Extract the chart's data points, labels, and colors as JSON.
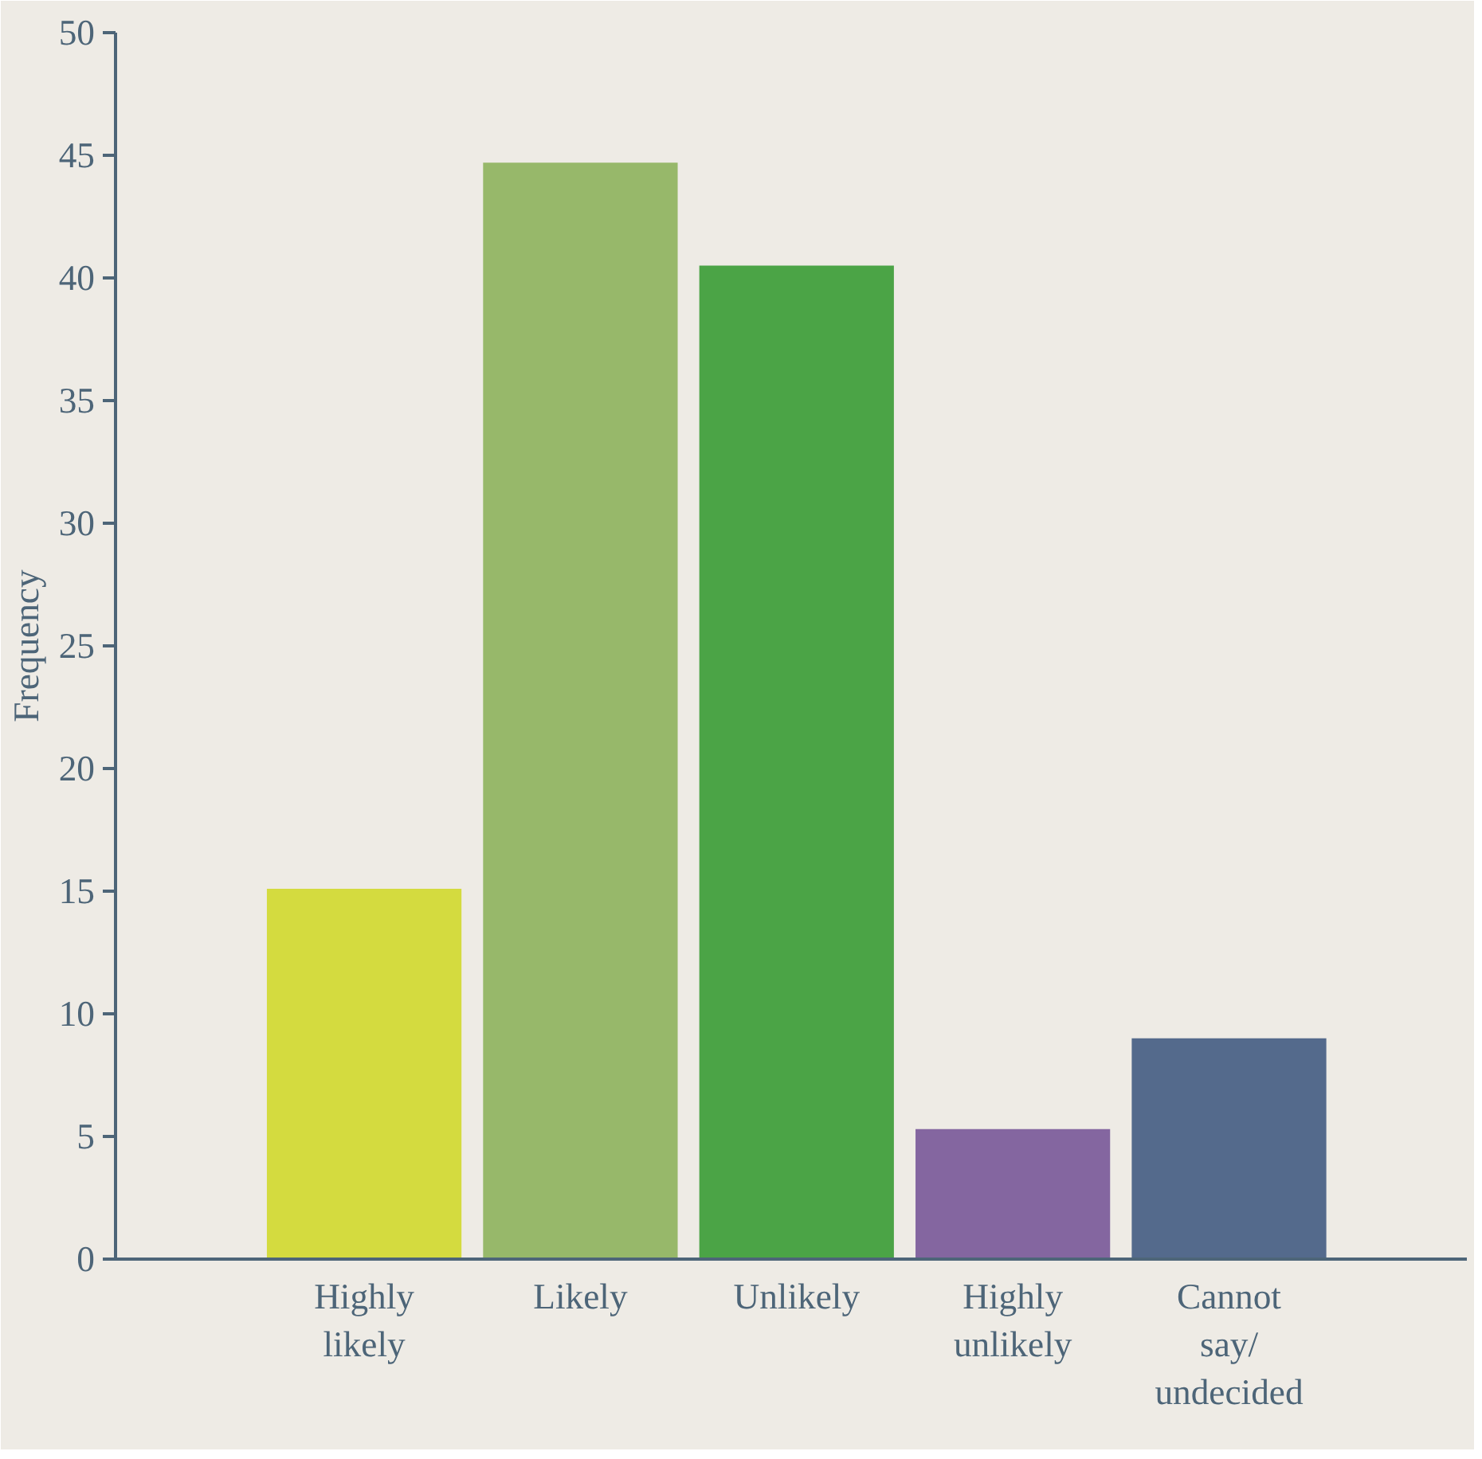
{
  "chart_data": {
    "type": "bar",
    "ylabel": "Frequency",
    "categories": [
      "Highly likely",
      "Likely",
      "Unlikely",
      "Highly unlikely",
      "Cannot say/ undecided"
    ],
    "values": [
      15.1,
      44.7,
      40.5,
      5.3,
      9
    ],
    "colors": [
      "#d4db3f",
      "#97b86a",
      "#4ba446",
      "#8466a0",
      "#546a8c"
    ],
    "ylim": [
      0,
      50
    ],
    "yticks": [
      0,
      5,
      10,
      15,
      20,
      25,
      30,
      35,
      40,
      45,
      50
    ],
    "grid": false
  }
}
